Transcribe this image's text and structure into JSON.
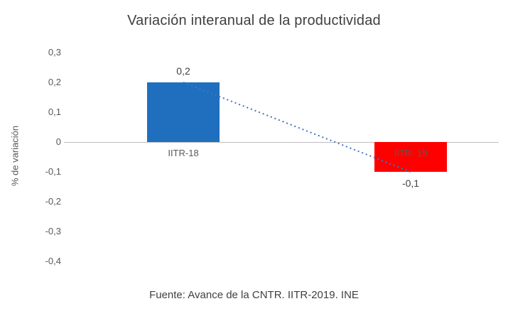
{
  "chart": {
    "title": "Variación interanual de la productividad",
    "ylabel": "% de variación",
    "footer": "Fuente: Avance de la CNTR. IITR-2019. INE"
  },
  "chart_data": {
    "type": "bar",
    "title": "Variación interanual de la productividad",
    "xlabel": "",
    "ylabel": "% de variación",
    "categories": [
      "IITR-18",
      "IITR- 19"
    ],
    "values": [
      0.2,
      -0.1
    ],
    "value_labels": [
      "0,2",
      "-0,1"
    ],
    "bar_colors": [
      "#1f6fbe",
      "#fe0000"
    ],
    "ylim": [
      -0.4,
      0.3
    ],
    "y_ticks": [
      {
        "value": 0.3,
        "label": "0,3"
      },
      {
        "value": 0.2,
        "label": "0,2"
      },
      {
        "value": 0.1,
        "label": "0,1"
      },
      {
        "value": 0.0,
        "label": "0"
      },
      {
        "value": -0.1,
        "label": "-0,1"
      },
      {
        "value": -0.2,
        "label": "-0,2"
      },
      {
        "value": -0.3,
        "label": "-0,3"
      },
      {
        "value": -0.4,
        "label": "-0,4"
      }
    ],
    "grid": false,
    "legend": false,
    "trendline": {
      "style": "dotted",
      "color": "#4472c4",
      "points": [
        0.2,
        -0.1
      ]
    },
    "source_note": "Fuente: Avance de la CNTR. IITR-2019. INE"
  }
}
